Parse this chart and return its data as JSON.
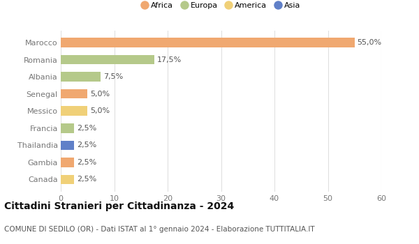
{
  "countries": [
    "Marocco",
    "Romania",
    "Albania",
    "Senegal",
    "Messico",
    "Francia",
    "Thailandia",
    "Gambia",
    "Canada"
  ],
  "values": [
    55.0,
    17.5,
    7.5,
    5.0,
    5.0,
    2.5,
    2.5,
    2.5,
    2.5
  ],
  "labels": [
    "55,0%",
    "17,5%",
    "7,5%",
    "5,0%",
    "5,0%",
    "2,5%",
    "2,5%",
    "2,5%",
    "2,5%"
  ],
  "continents": [
    "Africa",
    "Europa",
    "Europa",
    "Africa",
    "America",
    "Europa",
    "Asia",
    "Africa",
    "America"
  ],
  "continent_colors": {
    "Africa": "#F0A870",
    "Europa": "#B5C98A",
    "America": "#F0D078",
    "Asia": "#6080C8"
  },
  "legend_order": [
    "Africa",
    "Europa",
    "America",
    "Asia"
  ],
  "title": "Cittadini Stranieri per Cittadinanza - 2024",
  "subtitle": "COMUNE DI SEDILO (OR) - Dati ISTAT al 1° gennaio 2024 - Elaborazione TUTTITALIA.IT",
  "xlim": [
    0,
    60
  ],
  "xticks": [
    0,
    10,
    20,
    30,
    40,
    50,
    60
  ],
  "background_color": "#ffffff",
  "grid_color": "#e0e0e0",
  "bar_height": 0.55,
  "label_fontsize": 8,
  "tick_fontsize": 8,
  "title_fontsize": 10,
  "subtitle_fontsize": 7.5
}
